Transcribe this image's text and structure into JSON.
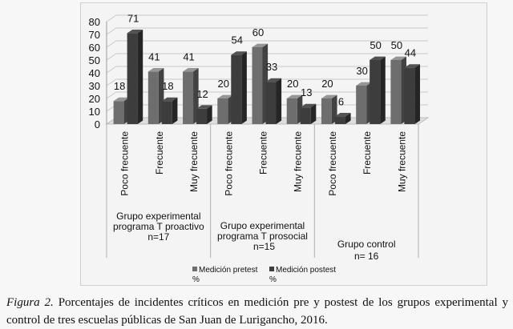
{
  "chart_data": {
    "type": "bar",
    "title": "",
    "xlabel": "",
    "ylabel": "",
    "ylim": [
      0,
      80
    ],
    "yticks": [
      0,
      10,
      20,
      30,
      40,
      50,
      60,
      70,
      80
    ],
    "grid": true,
    "style": "3d-column",
    "legend_position": "bottom",
    "groups": [
      {
        "label": "Grupo experimental programa T proactivo n=17",
        "categories": [
          "Poco frecuente",
          "Frecuente",
          "Muy frecuente"
        ]
      },
      {
        "label": "Grupo experimental programa T prosocial n=15",
        "categories": [
          "Poco frecuente",
          "Frecuente",
          "Muy frecuente"
        ]
      },
      {
        "label": "Grupo control n= 16",
        "categories": [
          "Poco frecuente",
          "Frecuente",
          "Muy frecuente"
        ]
      }
    ],
    "categories": [
      "Poco frecuente",
      "Frecuente",
      "Muy frecuente",
      "Poco frecuente",
      "Frecuente",
      "Muy frecuente",
      "Poco frecuente",
      "Frecuente",
      "Muy frecuente"
    ],
    "series": [
      {
        "name": "Medición pretest %",
        "color": "#6e6e6e",
        "values": [
          18,
          41,
          41,
          20,
          60,
          20,
          20,
          30,
          50
        ]
      },
      {
        "name": "Medición postest %",
        "color": "#3d3d3d",
        "values": [
          71,
          18,
          12,
          54,
          33,
          13,
          6,
          50,
          44
        ]
      }
    ]
  },
  "caption": {
    "label": "Figura 2.",
    "text": "Porcentajes de incidentes críticos en medición pre y postest de los grupos experimental y control de tres escuelas públicas de San Juan de Lurigancho, 2016."
  }
}
